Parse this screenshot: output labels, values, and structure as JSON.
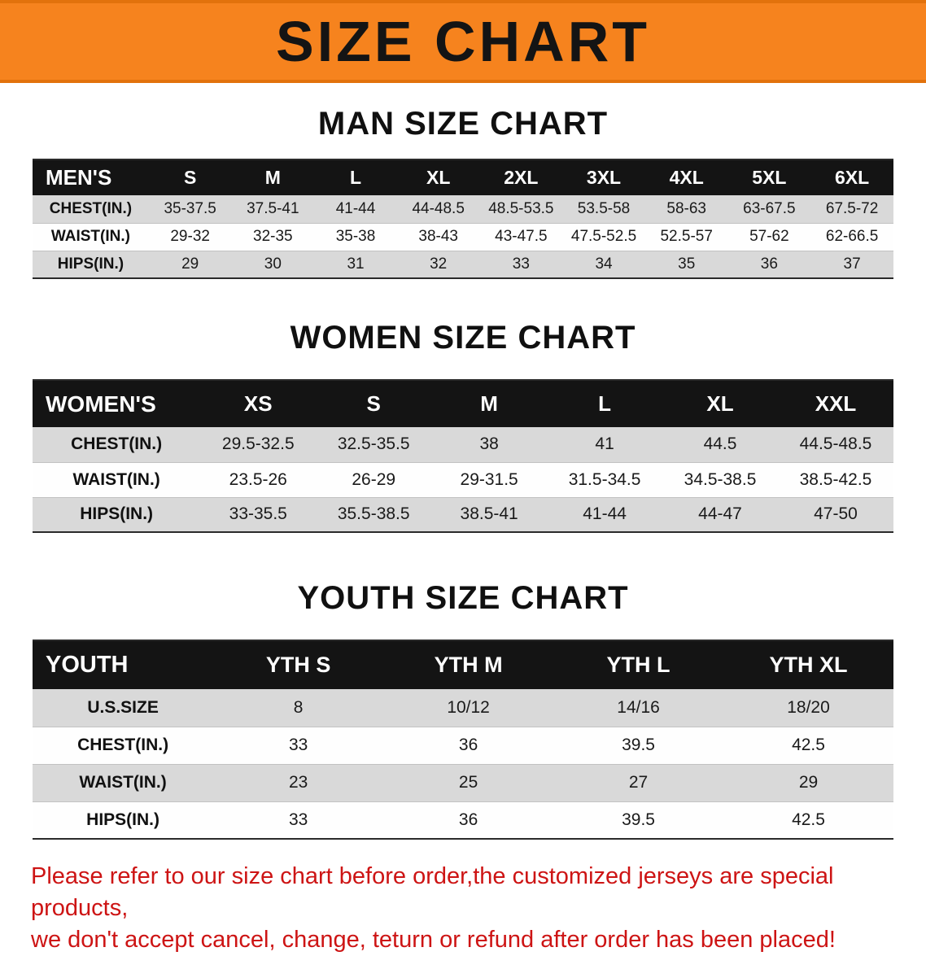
{
  "banner": {
    "title": "SIZE CHART",
    "bg_color": "#f6831e",
    "text_color": "#141414"
  },
  "sections": [
    {
      "id": "men",
      "heading": "MAN SIZE CHART",
      "table": {
        "header": [
          "MEN'S",
          "S",
          "M",
          "L",
          "XL",
          "2XL",
          "3XL",
          "4XL",
          "5XL",
          "6XL"
        ],
        "rows": [
          [
            "CHEST(IN.)",
            "35-37.5",
            "37.5-41",
            "41-44",
            "44-48.5",
            "48.5-53.5",
            "53.5-58",
            "58-63",
            "63-67.5",
            "67.5-72"
          ],
          [
            "WAIST(IN.)",
            "29-32",
            "32-35",
            "35-38",
            "38-43",
            "43-47.5",
            "47.5-52.5",
            "52.5-57",
            "57-62",
            "62-66.5"
          ],
          [
            "HIPS(IN.)",
            "29",
            "30",
            "31",
            "32",
            "33",
            "34",
            "35",
            "36",
            "37"
          ]
        ]
      }
    },
    {
      "id": "women",
      "heading": "WOMEN SIZE CHART",
      "table": {
        "header": [
          "WOMEN'S",
          "XS",
          "S",
          "M",
          "L",
          "XL",
          "XXL"
        ],
        "rows": [
          [
            "CHEST(IN.)",
            "29.5-32.5",
            "32.5-35.5",
            "38",
            "41",
            "44.5",
            "44.5-48.5"
          ],
          [
            "WAIST(IN.)",
            "23.5-26",
            "26-29",
            "29-31.5",
            "31.5-34.5",
            "34.5-38.5",
            "38.5-42.5"
          ],
          [
            "HIPS(IN.)",
            "33-35.5",
            "35.5-38.5",
            "38.5-41",
            "41-44",
            "44-47",
            "47-50"
          ]
        ]
      }
    },
    {
      "id": "youth",
      "heading": "YOUTH SIZE CHART",
      "table": {
        "header": [
          "YOUTH",
          "YTH S",
          "YTH M",
          "YTH L",
          "YTH XL"
        ],
        "rows": [
          [
            "U.S.SIZE",
            "8",
            "10/12",
            "14/16",
            "18/20"
          ],
          [
            "CHEST(IN.)",
            "33",
            "36",
            "39.5",
            "42.5"
          ],
          [
            "WAIST(IN.)",
            "23",
            "25",
            "27",
            "29"
          ],
          [
            "HIPS(IN.)",
            "33",
            "36",
            "39.5",
            "42.5"
          ]
        ]
      }
    }
  ],
  "footer": {
    "line1": "Please refer to our size chart before order,the customized jerseys are special products,",
    "line2": "we don't accept cancel, change, teturn or refund after order has been placed!"
  }
}
